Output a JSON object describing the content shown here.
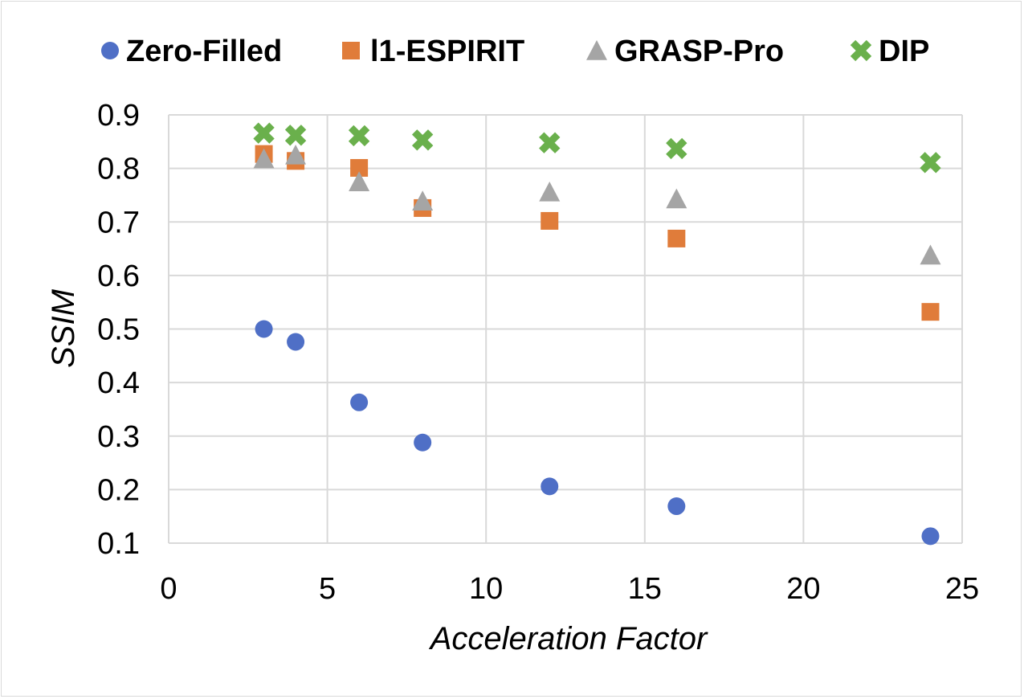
{
  "chart_data": {
    "type": "scatter",
    "title": "",
    "xlabel": "Acceleration Factor",
    "ylabel": "SSIM",
    "xlim": [
      0,
      25
    ],
    "ylim": [
      0.1,
      0.9
    ],
    "x_ticks": [
      0,
      5,
      10,
      15,
      20,
      25
    ],
    "y_ticks": [
      0.1,
      0.2,
      0.3,
      0.4,
      0.5,
      0.6,
      0.7,
      0.8,
      0.9
    ],
    "x_tick_labels": [
      "0",
      "5",
      "10",
      "15",
      "20",
      "25"
    ],
    "y_tick_labels": [
      "0.1",
      "0.2",
      "0.3",
      "0.4",
      "0.5",
      "0.6",
      "0.7",
      "0.8",
      "0.9"
    ],
    "grid": true,
    "legend_position": "top",
    "series": [
      {
        "name": "Zero-Filled",
        "marker": "circle",
        "color": "#4f6fc6",
        "x": [
          3,
          4,
          6,
          8,
          12,
          16,
          24
        ],
        "y": [
          0.5,
          0.476,
          0.363,
          0.288,
          0.206,
          0.169,
          0.113
        ]
      },
      {
        "name": "l1-ESPIRIT",
        "marker": "square",
        "color": "#e07c3a",
        "x": [
          3,
          4,
          6,
          8,
          12,
          16,
          24
        ],
        "y": [
          0.827,
          0.814,
          0.801,
          0.726,
          0.702,
          0.669,
          0.532
        ]
      },
      {
        "name": "GRASP-Pro",
        "marker": "triangle",
        "color": "#a5a5a5",
        "x": [
          3,
          4,
          6,
          8,
          12,
          16,
          24
        ],
        "y": [
          0.818,
          0.825,
          0.775,
          0.739,
          0.756,
          0.743,
          0.638
        ]
      },
      {
        "name": "DIP",
        "marker": "x",
        "color": "#6ab04c",
        "x": [
          3,
          4,
          6,
          8,
          12,
          16,
          24
        ],
        "y": [
          0.866,
          0.862,
          0.861,
          0.853,
          0.848,
          0.837,
          0.811
        ]
      }
    ]
  }
}
